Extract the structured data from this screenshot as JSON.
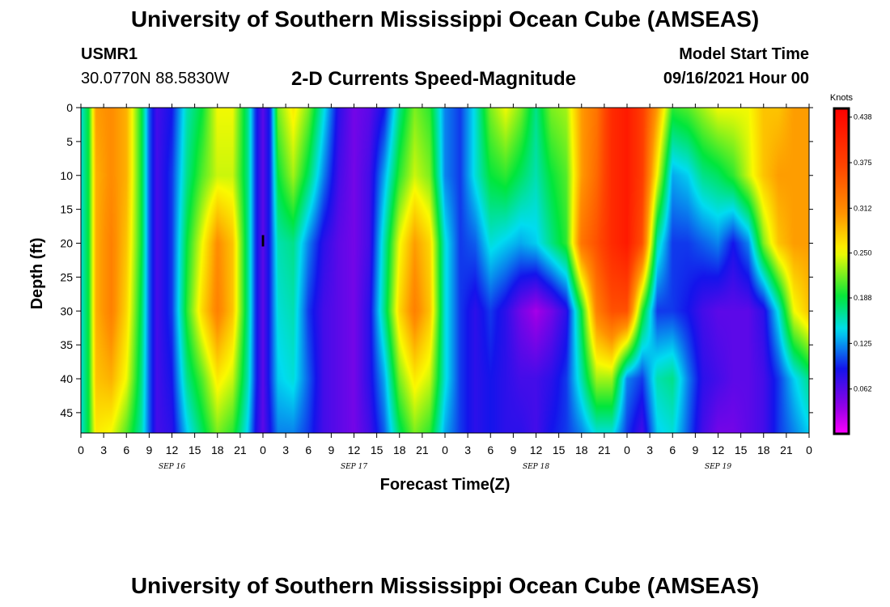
{
  "header": {
    "title": "University of Southern Mississippi Ocean Cube (AMSEAS)",
    "station_id": "USMR1",
    "station_coords": "30.0770N  88.5830W",
    "chart_title": "2-D Currents Speed-Magnitude",
    "start_label": "Model Start Time",
    "start_value": "09/16/2021 Hour 00"
  },
  "footer": {
    "title": "University of Southern Mississippi Ocean Cube (AMSEAS)"
  },
  "chart_data": {
    "type": "heatmap",
    "title": "2-D Currents Speed-Magnitude",
    "xlabel": "Forecast Time(Z)",
    "ylabel": "Depth (ft)",
    "xlim": [
      0,
      96
    ],
    "ylim": [
      0,
      48
    ],
    "y_inverted": true,
    "x_tick_labels": [
      "0",
      "3",
      "6",
      "9",
      "12",
      "15",
      "18",
      "21",
      "0",
      "3",
      "6",
      "9",
      "12",
      "15",
      "18",
      "21",
      "0",
      "3",
      "6",
      "9",
      "12",
      "15",
      "18",
      "21",
      "0",
      "3",
      "6",
      "9",
      "12",
      "15",
      "18",
      "21",
      "0"
    ],
    "y_ticks": [
      0,
      5,
      10,
      15,
      20,
      25,
      30,
      35,
      40,
      45
    ],
    "date_labels": [
      {
        "label": "SEP 16",
        "hour": 12
      },
      {
        "label": "SEP 17",
        "hour": 36
      },
      {
        "label": "SEP 18",
        "hour": 60
      },
      {
        "label": "SEP 19",
        "hour": 84
      }
    ],
    "marker": {
      "label": "I",
      "hour": 24,
      "depth": 19.5
    },
    "colorbar": {
      "unit": "Knots",
      "min": 0,
      "max": 0.45,
      "tick_labels": [
        "0.438",
        "0.375",
        "0.312",
        "0.250",
        "0.188",
        "0.125",
        "0.062"
      ],
      "tick_values": [
        0.438,
        0.375,
        0.312,
        0.25,
        0.188,
        0.125,
        0.062
      ]
    },
    "speed_knots": {
      "hours": [
        0,
        1,
        2,
        4,
        6,
        8,
        9,
        10,
        12,
        14,
        16,
        18,
        20,
        22,
        23,
        24,
        25,
        26,
        28,
        30,
        32,
        34,
        36,
        38,
        40,
        42,
        44,
        46,
        48,
        50,
        52,
        54,
        56,
        58,
        60,
        62,
        64,
        66,
        68,
        70,
        72,
        74,
        76,
        78,
        80,
        82,
        84,
        86,
        88,
        90,
        92,
        94,
        96
      ],
      "depths": [
        0,
        10,
        20,
        30,
        40,
        48
      ],
      "values": [
        [
          0.15,
          0.19,
          0.3,
          0.31,
          0.29,
          0.19,
          0.11,
          0.07,
          0.09,
          0.16,
          0.19,
          0.25,
          0.25,
          0.17,
          0.1,
          0.06,
          0.1,
          0.22,
          0.26,
          0.22,
          0.15,
          0.08,
          0.05,
          0.06,
          0.09,
          0.17,
          0.22,
          0.2,
          0.12,
          0.1,
          0.15,
          0.22,
          0.25,
          0.22,
          0.17,
          0.22,
          0.23,
          0.3,
          0.33,
          0.4,
          0.42,
          0.38,
          0.3,
          0.2,
          0.21,
          0.23,
          0.25,
          0.25,
          0.25,
          0.28,
          0.28,
          0.3,
          0.3
        ],
        [
          0.15,
          0.19,
          0.29,
          0.31,
          0.29,
          0.19,
          0.11,
          0.07,
          0.1,
          0.17,
          0.21,
          0.24,
          0.24,
          0.17,
          0.1,
          0.06,
          0.1,
          0.19,
          0.23,
          0.18,
          0.12,
          0.07,
          0.05,
          0.07,
          0.13,
          0.2,
          0.24,
          0.22,
          0.12,
          0.1,
          0.15,
          0.19,
          0.2,
          0.18,
          0.16,
          0.19,
          0.21,
          0.3,
          0.34,
          0.4,
          0.42,
          0.38,
          0.25,
          0.13,
          0.14,
          0.17,
          0.18,
          0.2,
          0.24,
          0.28,
          0.3,
          0.3,
          0.3
        ],
        [
          0.15,
          0.19,
          0.29,
          0.32,
          0.28,
          0.19,
          0.11,
          0.07,
          0.1,
          0.19,
          0.25,
          0.31,
          0.28,
          0.17,
          0.1,
          0.06,
          0.1,
          0.16,
          0.17,
          0.12,
          0.08,
          0.06,
          0.05,
          0.07,
          0.16,
          0.25,
          0.3,
          0.27,
          0.15,
          0.1,
          0.11,
          0.15,
          0.14,
          0.13,
          0.14,
          0.17,
          0.2,
          0.33,
          0.36,
          0.4,
          0.42,
          0.36,
          0.16,
          0.1,
          0.1,
          0.11,
          0.12,
          0.09,
          0.12,
          0.22,
          0.28,
          0.3,
          0.3
        ],
        [
          0.15,
          0.19,
          0.29,
          0.32,
          0.27,
          0.18,
          0.11,
          0.07,
          0.1,
          0.2,
          0.27,
          0.32,
          0.28,
          0.17,
          0.1,
          0.06,
          0.1,
          0.15,
          0.16,
          0.1,
          0.07,
          0.06,
          0.05,
          0.08,
          0.17,
          0.27,
          0.32,
          0.28,
          0.15,
          0.1,
          0.08,
          0.1,
          0.08,
          0.05,
          0.03,
          0.05,
          0.08,
          0.19,
          0.32,
          0.36,
          0.36,
          0.2,
          0.1,
          0.1,
          0.09,
          0.07,
          0.06,
          0.06,
          0.06,
          0.08,
          0.15,
          0.25,
          0.28
        ],
        [
          0.15,
          0.19,
          0.28,
          0.29,
          0.25,
          0.17,
          0.11,
          0.07,
          0.09,
          0.17,
          0.21,
          0.26,
          0.24,
          0.16,
          0.1,
          0.06,
          0.1,
          0.14,
          0.15,
          0.11,
          0.07,
          0.06,
          0.05,
          0.08,
          0.13,
          0.22,
          0.26,
          0.24,
          0.15,
          0.1,
          0.08,
          0.09,
          0.08,
          0.07,
          0.07,
          0.08,
          0.1,
          0.16,
          0.23,
          0.23,
          0.12,
          0.1,
          0.16,
          0.17,
          0.12,
          0.08,
          0.07,
          0.06,
          0.06,
          0.07,
          0.1,
          0.14,
          0.17
        ],
        [
          0.15,
          0.19,
          0.26,
          0.25,
          0.21,
          0.16,
          0.11,
          0.07,
          0.08,
          0.14,
          0.18,
          0.22,
          0.2,
          0.14,
          0.09,
          0.06,
          0.09,
          0.12,
          0.12,
          0.1,
          0.07,
          0.06,
          0.05,
          0.07,
          0.11,
          0.18,
          0.22,
          0.2,
          0.13,
          0.1,
          0.08,
          0.09,
          0.08,
          0.08,
          0.07,
          0.09,
          0.1,
          0.12,
          0.15,
          0.15,
          0.1,
          0.07,
          0.14,
          0.15,
          0.11,
          0.07,
          0.05,
          0.05,
          0.06,
          0.07,
          0.1,
          0.12,
          0.14
        ]
      ]
    }
  }
}
